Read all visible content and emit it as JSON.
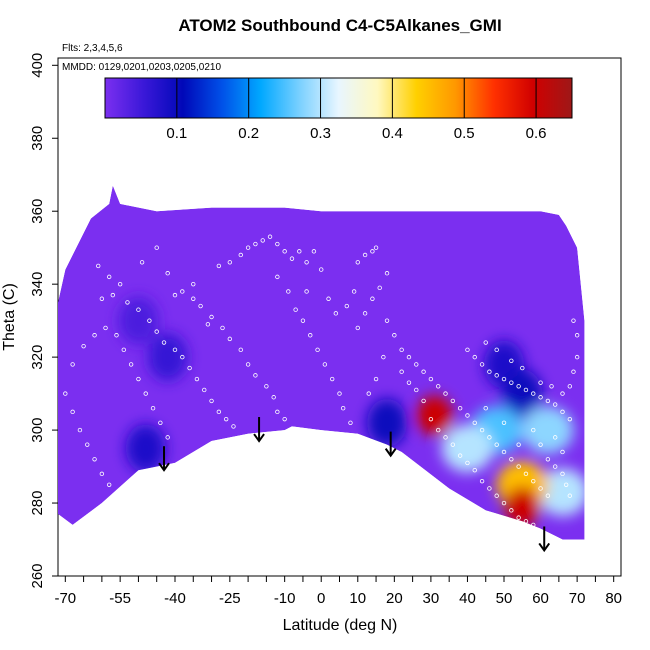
{
  "chart_data": {
    "type": "heatmap",
    "title": "ATOM2 Southbound C4-C5Alkanes_GMI",
    "annotations": {
      "flights": "Flts: 2,3,4,5,6",
      "dates": "MMDD: 0129,0201,0203,0205,0210"
    },
    "xlabel": "Latitude (deg N)",
    "ylabel": "Theta (C)",
    "xlim": [
      -72,
      82
    ],
    "ylim": [
      260,
      402
    ],
    "x_ticks": [
      -70,
      -65,
      -60,
      -55,
      -50,
      -45,
      -40,
      -35,
      -30,
      -25,
      -20,
      -15,
      -10,
      -5,
      0,
      5,
      10,
      15,
      20,
      25,
      30,
      35,
      40,
      45,
      50,
      55,
      60,
      65,
      70,
      75,
      80
    ],
    "x_tick_labels": [
      "-70",
      "",
      "",
      "-55",
      "",
      "",
      "-40",
      "",
      "",
      "-25",
      "",
      "",
      "-10",
      "",
      "0",
      "",
      "10",
      "",
      "20",
      "",
      "30",
      "",
      "40",
      "",
      "50",
      "",
      "60",
      "",
      "70",
      "",
      "80"
    ],
    "y_ticks": [
      260,
      280,
      300,
      320,
      340,
      360,
      380,
      400
    ],
    "y_tick_labels": [
      "260",
      "280",
      "300",
      "320",
      "340",
      "360",
      "380",
      "400"
    ],
    "colorbar": {
      "range": [
        0.0,
        0.65
      ],
      "ticks": [
        0.1,
        0.2,
        0.3,
        0.4,
        0.5,
        0.6
      ],
      "tick_labels": [
        "0.1",
        "0.2",
        "0.3",
        "0.4",
        "0.5",
        "0.6"
      ],
      "colors": [
        "#7b2ff0",
        "#3a18d8",
        "#0008b8",
        "#0050e8",
        "#00a8ff",
        "#7ad0ff",
        "#e8f6ff",
        "#fff8c0",
        "#ffd000",
        "#ff9800",
        "#ff3000",
        "#d00000",
        "#9e1818"
      ]
    },
    "domain_top": [
      [
        -72,
        335
      ],
      [
        -70,
        344
      ],
      [
        -63,
        358
      ],
      [
        -58,
        362
      ],
      [
        -57,
        367
      ],
      [
        -55,
        362
      ],
      [
        -45,
        360
      ],
      [
        -30,
        361
      ],
      [
        -20,
        361
      ],
      [
        -10,
        361
      ],
      [
        0,
        360
      ],
      [
        10,
        360
      ],
      [
        20,
        360
      ],
      [
        30,
        360
      ],
      [
        40,
        360
      ],
      [
        50,
        360
      ],
      [
        60,
        360
      ],
      [
        65,
        359
      ],
      [
        67,
        356
      ],
      [
        70,
        350
      ],
      [
        72,
        330
      ]
    ],
    "domain_bottom": [
      [
        -72,
        277
      ],
      [
        -68,
        274
      ],
      [
        -60,
        280
      ],
      [
        -50,
        289
      ],
      [
        -40,
        291
      ],
      [
        -30,
        297
      ],
      [
        -20,
        299
      ],
      [
        -10,
        300
      ],
      [
        -8,
        301
      ],
      [
        0,
        300
      ],
      [
        10,
        299
      ],
      [
        18,
        296
      ],
      [
        22,
        294
      ],
      [
        35,
        284
      ],
      [
        45,
        278
      ],
      [
        55,
        275
      ],
      [
        60,
        273
      ],
      [
        66,
        270
      ],
      [
        72,
        270
      ]
    ],
    "hotspots": [
      {
        "lat": 31,
        "theta": 304,
        "value": 0.6
      },
      {
        "lat": 55,
        "theta": 279,
        "value": 0.6
      },
      {
        "lat": 55,
        "theta": 285,
        "value": 0.45
      },
      {
        "lat": 40,
        "theta": 295,
        "value": 0.3
      },
      {
        "lat": 48,
        "theta": 300,
        "value": 0.25
      },
      {
        "lat": 62,
        "theta": 300,
        "value": 0.28
      },
      {
        "lat": 66,
        "theta": 283,
        "value": 0.3
      },
      {
        "lat": 55,
        "theta": 310,
        "value": 0.1
      },
      {
        "lat": 50,
        "theta": 318,
        "value": 0.08
      },
      {
        "lat": 18,
        "theta": 302,
        "value": 0.1
      },
      {
        "lat": -48,
        "theta": 295,
        "value": 0.08
      },
      {
        "lat": -42,
        "theta": 320,
        "value": 0.06
      },
      {
        "lat": -50,
        "theta": 330,
        "value": 0.04
      }
    ],
    "arrows": [
      {
        "lat": -43,
        "theta": 289
      },
      {
        "lat": -17,
        "theta": 297
      },
      {
        "lat": 19,
        "theta": 293
      },
      {
        "lat": 61,
        "theta": 267
      }
    ],
    "sample_points": [
      [
        -68,
        318
      ],
      [
        -65,
        323
      ],
      [
        -62,
        326
      ],
      [
        -59,
        328
      ],
      [
        -56,
        326
      ],
      [
        -54,
        322
      ],
      [
        -52,
        318
      ],
      [
        -50,
        314
      ],
      [
        -48,
        310
      ],
      [
        -46,
        306
      ],
      [
        -44,
        302
      ],
      [
        -42,
        298
      ],
      [
        -55,
        340
      ],
      [
        -57,
        337
      ],
      [
        -53,
        335
      ],
      [
        -50,
        333
      ],
      [
        -47,
        330
      ],
      [
        -45,
        327
      ],
      [
        -43,
        324
      ],
      [
        -40,
        322
      ],
      [
        -38,
        320
      ],
      [
        -36,
        317
      ],
      [
        -34,
        314
      ],
      [
        -32,
        311
      ],
      [
        -30,
        308
      ],
      [
        -28,
        305
      ],
      [
        -26,
        303
      ],
      [
        -24,
        301
      ],
      [
        -66,
        300
      ],
      [
        -64,
        296
      ],
      [
        -62,
        292
      ],
      [
        -60,
        288
      ],
      [
        -58,
        285
      ],
      [
        -70,
        310
      ],
      [
        -68,
        305
      ],
      [
        -40,
        337
      ],
      [
        -38,
        338
      ],
      [
        -35,
        336
      ],
      [
        -33,
        334
      ],
      [
        -30,
        331
      ],
      [
        -27,
        328
      ],
      [
        -25,
        325
      ],
      [
        -22,
        322
      ],
      [
        -20,
        318
      ],
      [
        -18,
        315
      ],
      [
        -15,
        312
      ],
      [
        -13,
        309
      ],
      [
        -12,
        305
      ],
      [
        -10,
        303
      ],
      [
        -28,
        345
      ],
      [
        -25,
        346
      ],
      [
        -22,
        348
      ],
      [
        -20,
        350
      ],
      [
        -18,
        351
      ],
      [
        -16,
        352
      ],
      [
        -14,
        353
      ],
      [
        -12,
        351
      ],
      [
        -10,
        349
      ],
      [
        -8,
        347
      ],
      [
        -6,
        349
      ],
      [
        -4,
        346
      ],
      [
        -2,
        349
      ],
      [
        0,
        344
      ],
      [
        -5,
        330
      ],
      [
        -3,
        326
      ],
      [
        -1,
        322
      ],
      [
        1,
        318
      ],
      [
        3,
        314
      ],
      [
        5,
        310
      ],
      [
        6,
        306
      ],
      [
        8,
        302
      ],
      [
        10,
        328
      ],
      [
        12,
        332
      ],
      [
        14,
        336
      ],
      [
        16,
        339
      ],
      [
        18,
        343
      ],
      [
        10,
        346
      ],
      [
        12,
        348
      ],
      [
        14,
        349
      ],
      [
        15,
        350
      ],
      [
        20,
        326
      ],
      [
        22,
        322
      ],
      [
        24,
        320
      ],
      [
        26,
        318
      ],
      [
        28,
        316
      ],
      [
        30,
        314
      ],
      [
        32,
        312
      ],
      [
        34,
        310
      ],
      [
        36,
        308
      ],
      [
        38,
        306
      ],
      [
        40,
        304
      ],
      [
        42,
        302
      ],
      [
        44,
        300
      ],
      [
        46,
        298
      ],
      [
        48,
        296
      ],
      [
        50,
        294
      ],
      [
        52,
        292
      ],
      [
        54,
        290
      ],
      [
        56,
        288
      ],
      [
        58,
        286
      ],
      [
        60,
        284
      ],
      [
        62,
        282
      ],
      [
        22,
        316
      ],
      [
        24,
        313
      ],
      [
        26,
        311
      ],
      [
        28,
        308
      ],
      [
        30,
        303
      ],
      [
        32,
        300
      ],
      [
        34,
        298
      ],
      [
        36,
        296
      ],
      [
        38,
        293
      ],
      [
        40,
        291
      ],
      [
        42,
        289
      ],
      [
        44,
        286
      ],
      [
        46,
        284
      ],
      [
        48,
        282
      ],
      [
        50,
        280
      ],
      [
        52,
        278
      ],
      [
        54,
        276
      ],
      [
        56,
        275
      ],
      [
        58,
        274
      ],
      [
        40,
        322
      ],
      [
        42,
        320
      ],
      [
        44,
        318
      ],
      [
        46,
        316
      ],
      [
        48,
        315
      ],
      [
        50,
        314
      ],
      [
        52,
        313
      ],
      [
        54,
        312
      ],
      [
        56,
        311
      ],
      [
        58,
        310
      ],
      [
        60,
        309
      ],
      [
        62,
        308
      ],
      [
        64,
        307
      ],
      [
        66,
        305
      ],
      [
        68,
        303
      ],
      [
        45,
        324
      ],
      [
        48,
        322
      ],
      [
        52,
        319
      ],
      [
        55,
        317
      ],
      [
        60,
        313
      ],
      [
        63,
        312
      ],
      [
        66,
        310
      ],
      [
        68,
        312
      ],
      [
        69,
        316
      ],
      [
        70,
        320
      ],
      [
        70,
        326
      ],
      [
        69,
        330
      ],
      [
        -60,
        336
      ],
      [
        -58,
        342
      ],
      [
        -61,
        345
      ],
      [
        -49,
        346
      ],
      [
        -45,
        350
      ],
      [
        -42,
        343
      ],
      [
        -35,
        340
      ],
      [
        -31,
        329
      ],
      [
        -12,
        342
      ],
      [
        -9,
        338
      ],
      [
        -7,
        333
      ],
      [
        -4,
        338
      ],
      [
        2,
        336
      ],
      [
        4,
        332
      ],
      [
        7,
        334
      ],
      [
        9,
        338
      ],
      [
        18,
        330
      ],
      [
        17,
        320
      ],
      [
        15,
        314
      ],
      [
        13,
        310
      ],
      [
        58,
        300
      ],
      [
        60,
        296
      ],
      [
        62,
        292
      ],
      [
        64,
        290
      ],
      [
        66,
        288
      ],
      [
        67,
        285
      ],
      [
        68,
        282
      ],
      [
        66,
        294
      ],
      [
        64,
        298
      ],
      [
        54,
        296
      ],
      [
        50,
        302
      ],
      [
        45,
        306
      ]
    ]
  }
}
